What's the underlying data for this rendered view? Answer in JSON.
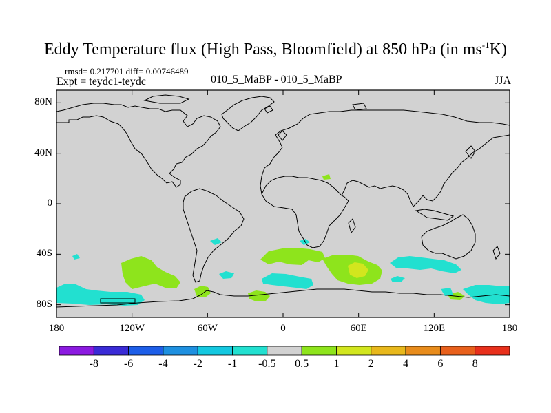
{
  "title_main": "Eddy Temperature flux (High Pass, Bloomfield) at 850 hPa (in ms",
  "title_sup": "-1",
  "title_end": "K)",
  "stats": "rmsd= 0.217701 diff= 0.00746489",
  "expt": "Expt = teydc1-teydc",
  "expname": "010_5_MaBP - 010_5_MaBP",
  "season": "JJA",
  "chart_data": {
    "type": "heatmap",
    "title": "Eddy Temperature flux (High Pass, Bloomfield) at 850 hPa (in ms-1K)",
    "subtitle_left": "rmsd= 0.217701 diff= 0.00746489",
    "x_ticks": [
      "180",
      "120W",
      "60W",
      "0",
      "60E",
      "120E",
      "180"
    ],
    "x_values": [
      -180,
      -120,
      -60,
      0,
      60,
      120,
      180
    ],
    "y_ticks": [
      "80N",
      "40N",
      "0",
      "40S",
      "80S"
    ],
    "y_values": [
      80,
      40,
      0,
      -40,
      -80
    ],
    "xlim": [
      -180,
      180
    ],
    "ylim": [
      -90,
      90
    ],
    "levels": [
      -8,
      -6,
      -4,
      -2,
      -1,
      -0.5,
      0.5,
      1,
      2,
      4,
      6,
      8
    ],
    "level_labels": [
      "-8",
      "-6",
      "-4",
      "-2",
      "-1",
      "-0.5",
      "0.5",
      "1",
      "2",
      "4",
      "6",
      "8"
    ],
    "colors": [
      "#8b1ae0",
      "#3a2bd6",
      "#1d5ee8",
      "#1e90e0",
      "#14c8e0",
      "#22e0d0",
      "#d2d2d2",
      "#8ee41c",
      "#d2e61e",
      "#e8b81c",
      "#e88c1c",
      "#e8601c",
      "#e8301c"
    ],
    "regions": [
      {
        "name": "South Atlantic positive anomaly",
        "value": 1,
        "lon": [
          -20,
          20
        ],
        "lat": [
          -42,
          -50
        ]
      },
      {
        "name": "South Indian Ocean positive anomaly",
        "value": 2,
        "lon": [
          40,
          75
        ],
        "lat": [
          -45,
          -60
        ]
      },
      {
        "name": "South Pacific positive anomaly",
        "value": 1,
        "lon": [
          -125,
          -90
        ],
        "lat": [
          -45,
          -68
        ]
      },
      {
        "name": "Southern Ocean negative anomaly (south of Australia)",
        "value": -1,
        "lon": [
          90,
          140
        ],
        "lat": [
          -43,
          -53
        ]
      },
      {
        "name": "Antarctic coast negative anomaly (Pacific)",
        "value": -1,
        "lon": [
          -180,
          -120
        ],
        "lat": [
          -63,
          -80
        ]
      },
      {
        "name": "Antarctic coast negative anomaly (Indian)",
        "value": -1,
        "lon": [
          140,
          180
        ],
        "lat": [
          -65,
          -80
        ]
      }
    ],
    "colormap_type": "filled contours, gray = no significant change"
  }
}
